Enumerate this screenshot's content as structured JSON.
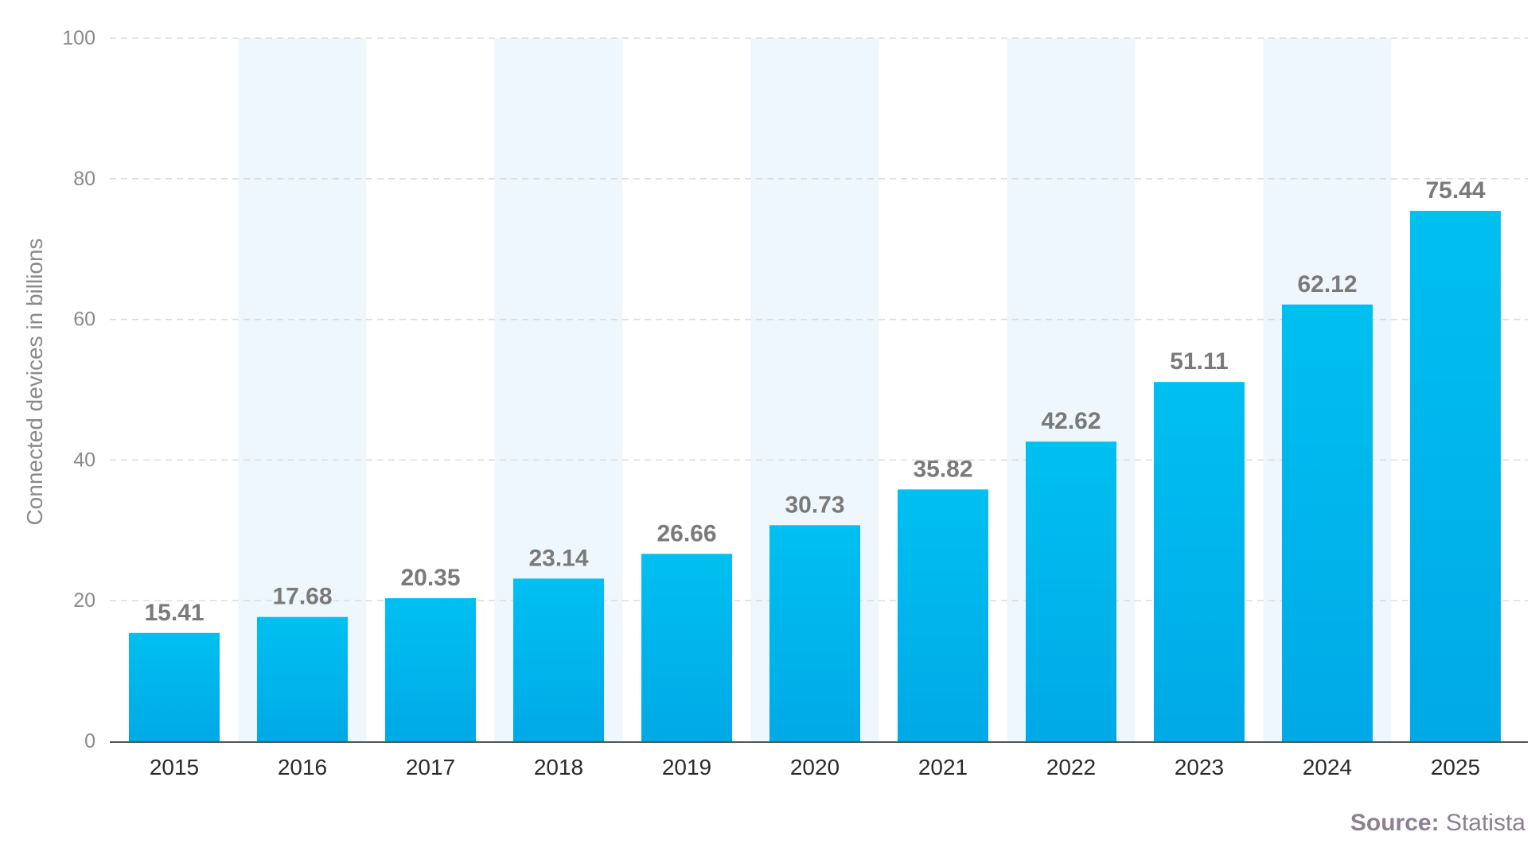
{
  "chart_data": {
    "type": "bar",
    "categories": [
      "2015",
      "2016",
      "2017",
      "2018",
      "2019",
      "2020",
      "2021",
      "2022",
      "2023",
      "2024",
      "2025"
    ],
    "values": [
      15.41,
      17.68,
      20.35,
      23.14,
      26.66,
      30.73,
      35.82,
      42.62,
      51.11,
      62.12,
      75.44
    ],
    "value_labels": [
      "15.41",
      "17.68",
      "20.35",
      "23.14",
      "26.66",
      "30.73",
      "35.82",
      "42.62",
      "51.11",
      "62.12",
      "75.44"
    ],
    "title": "",
    "xlabel": "",
    "ylabel": "Connected devices in billions",
    "ylim": [
      0,
      100
    ],
    "yticks": [
      "0",
      "20",
      "40",
      "60",
      "80",
      "100"
    ],
    "grid": true,
    "alternating_column_bands": true
  },
  "colors": {
    "bar_top": "#00c0f0",
    "bar_bottom": "#00a9e6",
    "band": "#eef7fd",
    "grid": "#dcdcdc",
    "axis": "#555555"
  },
  "source": {
    "key": "Source:",
    "value": "Statista"
  }
}
